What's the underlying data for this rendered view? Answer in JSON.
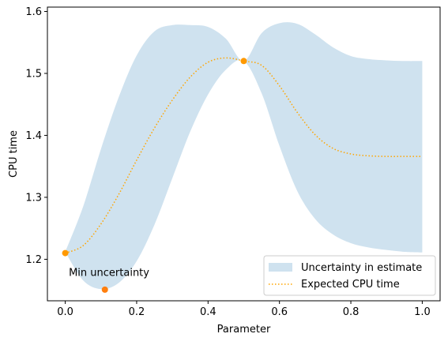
{
  "chart_data": {
    "type": "line",
    "title": "",
    "xlabel": "Parameter",
    "ylabel": "CPU time",
    "xlim": [
      -0.05,
      1.05
    ],
    "ylim": [
      1.133,
      1.607
    ],
    "xticks": [
      0.0,
      0.2,
      0.4,
      0.6,
      0.8,
      1.0
    ],
    "xtick_labels": [
      "0.0",
      "0.2",
      "0.4",
      "0.6",
      "0.8",
      "1.0"
    ],
    "yticks": [
      1.2,
      1.3,
      1.4,
      1.5,
      1.6
    ],
    "ytick_labels": [
      "1.2",
      "1.3",
      "1.4",
      "1.5",
      "1.6"
    ],
    "grid": false,
    "legend_position": "lower-right",
    "series": [
      {
        "name": "Uncertainty in estimate",
        "kind": "band",
        "color": "#cfe2ef",
        "x": [
          0.0,
          0.05,
          0.1,
          0.15,
          0.2,
          0.25,
          0.3,
          0.35,
          0.4,
          0.45,
          0.5,
          0.55,
          0.6,
          0.65,
          0.7,
          0.75,
          0.8,
          0.85,
          0.9,
          0.95,
          1.0
        ],
        "lower": [
          1.212,
          1.166,
          1.152,
          1.162,
          1.197,
          1.256,
          1.331,
          1.406,
          1.466,
          1.506,
          1.52,
          1.468,
          1.383,
          1.31,
          1.265,
          1.24,
          1.226,
          1.219,
          1.215,
          1.212,
          1.211
        ],
        "upper": [
          1.212,
          1.285,
          1.378,
          1.462,
          1.529,
          1.568,
          1.578,
          1.578,
          1.575,
          1.556,
          1.52,
          1.565,
          1.581,
          1.58,
          1.563,
          1.542,
          1.528,
          1.523,
          1.521,
          1.52,
          1.52
        ]
      },
      {
        "name": "Expected CPU time",
        "kind": "line",
        "style": "dotted",
        "color": "#ffa500",
        "x": [
          0.0,
          0.05,
          0.1,
          0.15,
          0.2,
          0.25,
          0.3,
          0.35,
          0.4,
          0.45,
          0.5,
          0.55,
          0.6,
          0.65,
          0.7,
          0.75,
          0.8,
          0.85,
          0.9,
          0.95,
          1.0
        ],
        "y": [
          1.21,
          1.222,
          1.257,
          1.305,
          1.36,
          1.412,
          1.457,
          1.494,
          1.518,
          1.525,
          1.52,
          1.513,
          1.48,
          1.437,
          1.401,
          1.379,
          1.37,
          1.367,
          1.366,
          1.366,
          1.366
        ]
      }
    ],
    "points": [
      {
        "x": 0.0,
        "y": 1.21,
        "color": "#ff9900"
      },
      {
        "x": 0.5,
        "y": 1.52,
        "color": "#ff9900"
      },
      {
        "x": 0.111,
        "y": 1.151,
        "color": "#ff7f0e"
      }
    ],
    "annotations": [
      {
        "text": "Min uncertainty",
        "x": 0.01,
        "y": 1.173
      }
    ]
  }
}
